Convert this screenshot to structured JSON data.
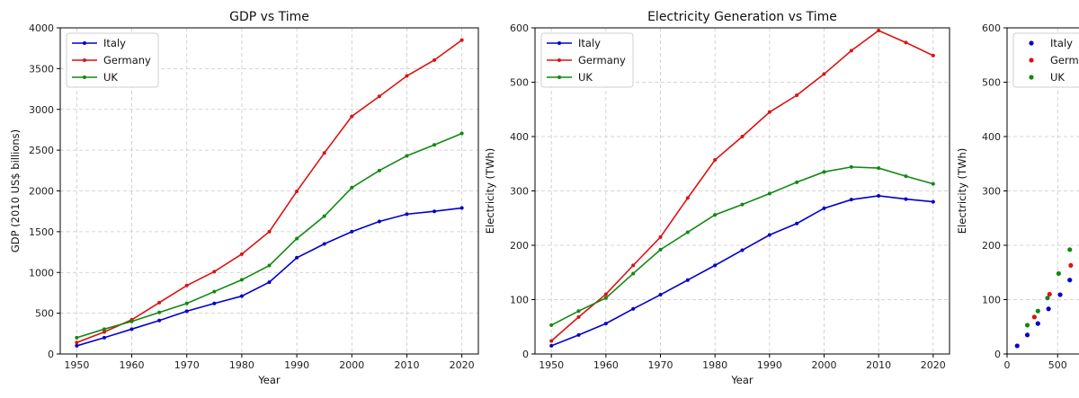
{
  "chart_data": [
    {
      "type": "line",
      "title": "GDP vs Time",
      "xlabel": "Year",
      "ylabel": "GDP (2010 US$ billions)",
      "xlim": [
        1947,
        2023
      ],
      "ylim": [
        0,
        4000
      ],
      "xticks": [
        1950,
        1960,
        1970,
        1980,
        1990,
        2000,
        2010,
        2020
      ],
      "yticks": [
        0,
        500,
        1000,
        1500,
        2000,
        2500,
        3000,
        3500,
        4000
      ],
      "grid": true,
      "legend_position": "top-left",
      "x": [
        1950,
        1955,
        1960,
        1965,
        1970,
        1975,
        1980,
        1985,
        1990,
        1995,
        2000,
        2005,
        2010,
        2015,
        2020
      ],
      "series": [
        {
          "name": "Italy",
          "color": "#0000cc",
          "values": [
            100,
            200,
            305,
            410,
            525,
            620,
            710,
            880,
            1180,
            1350,
            1500,
            1625,
            1715,
            1750,
            1790
          ]
        },
        {
          "name": "Germany",
          "color": "#dd1111",
          "values": [
            140,
            270,
            420,
            630,
            840,
            1010,
            1225,
            1500,
            1995,
            2465,
            2915,
            3160,
            3410,
            3605,
            3850
          ]
        },
        {
          "name": "UK",
          "color": "#118811",
          "values": [
            200,
            305,
            400,
            510,
            620,
            765,
            910,
            1085,
            1415,
            1690,
            2040,
            2250,
            2430,
            2565,
            2705
          ]
        }
      ]
    },
    {
      "type": "line",
      "title": "Electricity Generation vs Time",
      "xlabel": "Year",
      "ylabel": "Electricity (TWh)",
      "xlim": [
        1947,
        2023
      ],
      "ylim": [
        0,
        600
      ],
      "xticks": [
        1950,
        1960,
        1970,
        1980,
        1990,
        2000,
        2010,
        2020
      ],
      "yticks": [
        0,
        100,
        200,
        300,
        400,
        500,
        600
      ],
      "grid": true,
      "legend_position": "top-left",
      "x": [
        1950,
        1955,
        1960,
        1965,
        1970,
        1975,
        1980,
        1985,
        1990,
        1995,
        2000,
        2005,
        2010,
        2015,
        2020
      ],
      "series": [
        {
          "name": "Italy",
          "color": "#0000cc",
          "values": [
            15,
            35,
            56,
            83,
            109,
            136,
            163,
            191,
            219,
            240,
            268,
            284,
            291,
            285,
            280
          ]
        },
        {
          "name": "Germany",
          "color": "#dd1111",
          "values": [
            24,
            68,
            110,
            163,
            215,
            287,
            357,
            400,
            445,
            476,
            515,
            558,
            595,
            573,
            549
          ]
        },
        {
          "name": "UK",
          "color": "#118811",
          "values": [
            53,
            79,
            103,
            148,
            192,
            224,
            256,
            275,
            295,
            316,
            335,
            344,
            342,
            327,
            313
          ]
        }
      ]
    },
    {
      "type": "scatter",
      "title": "",
      "xlabel": "",
      "ylabel": "Electricity (TWh)",
      "xlim": [
        0,
        800
      ],
      "ylim": [
        0,
        600
      ],
      "xticks": [
        0,
        500
      ],
      "yticks": [
        0,
        100,
        200,
        300,
        400,
        500,
        600
      ],
      "grid": true,
      "legend_position": "top-left",
      "legend_labels": [
        "Italy",
        "Germ",
        "UK"
      ],
      "series": [
        {
          "name": "Italy",
          "color": "#0000cc",
          "points": [
            [
              100,
              15
            ],
            [
              200,
              35
            ],
            [
              305,
              56
            ],
            [
              410,
              83
            ],
            [
              525,
              109
            ],
            [
              620,
              136
            ]
          ]
        },
        {
          "name": "Germany",
          "color": "#dd1111",
          "points": [
            [
              270,
              68
            ],
            [
              420,
              110
            ],
            [
              630,
              163
            ]
          ]
        },
        {
          "name": "UK",
          "color": "#118811",
          "points": [
            [
              200,
              53
            ],
            [
              305,
              79
            ],
            [
              400,
              103
            ],
            [
              510,
              148
            ],
            [
              620,
              192
            ]
          ]
        }
      ]
    }
  ]
}
